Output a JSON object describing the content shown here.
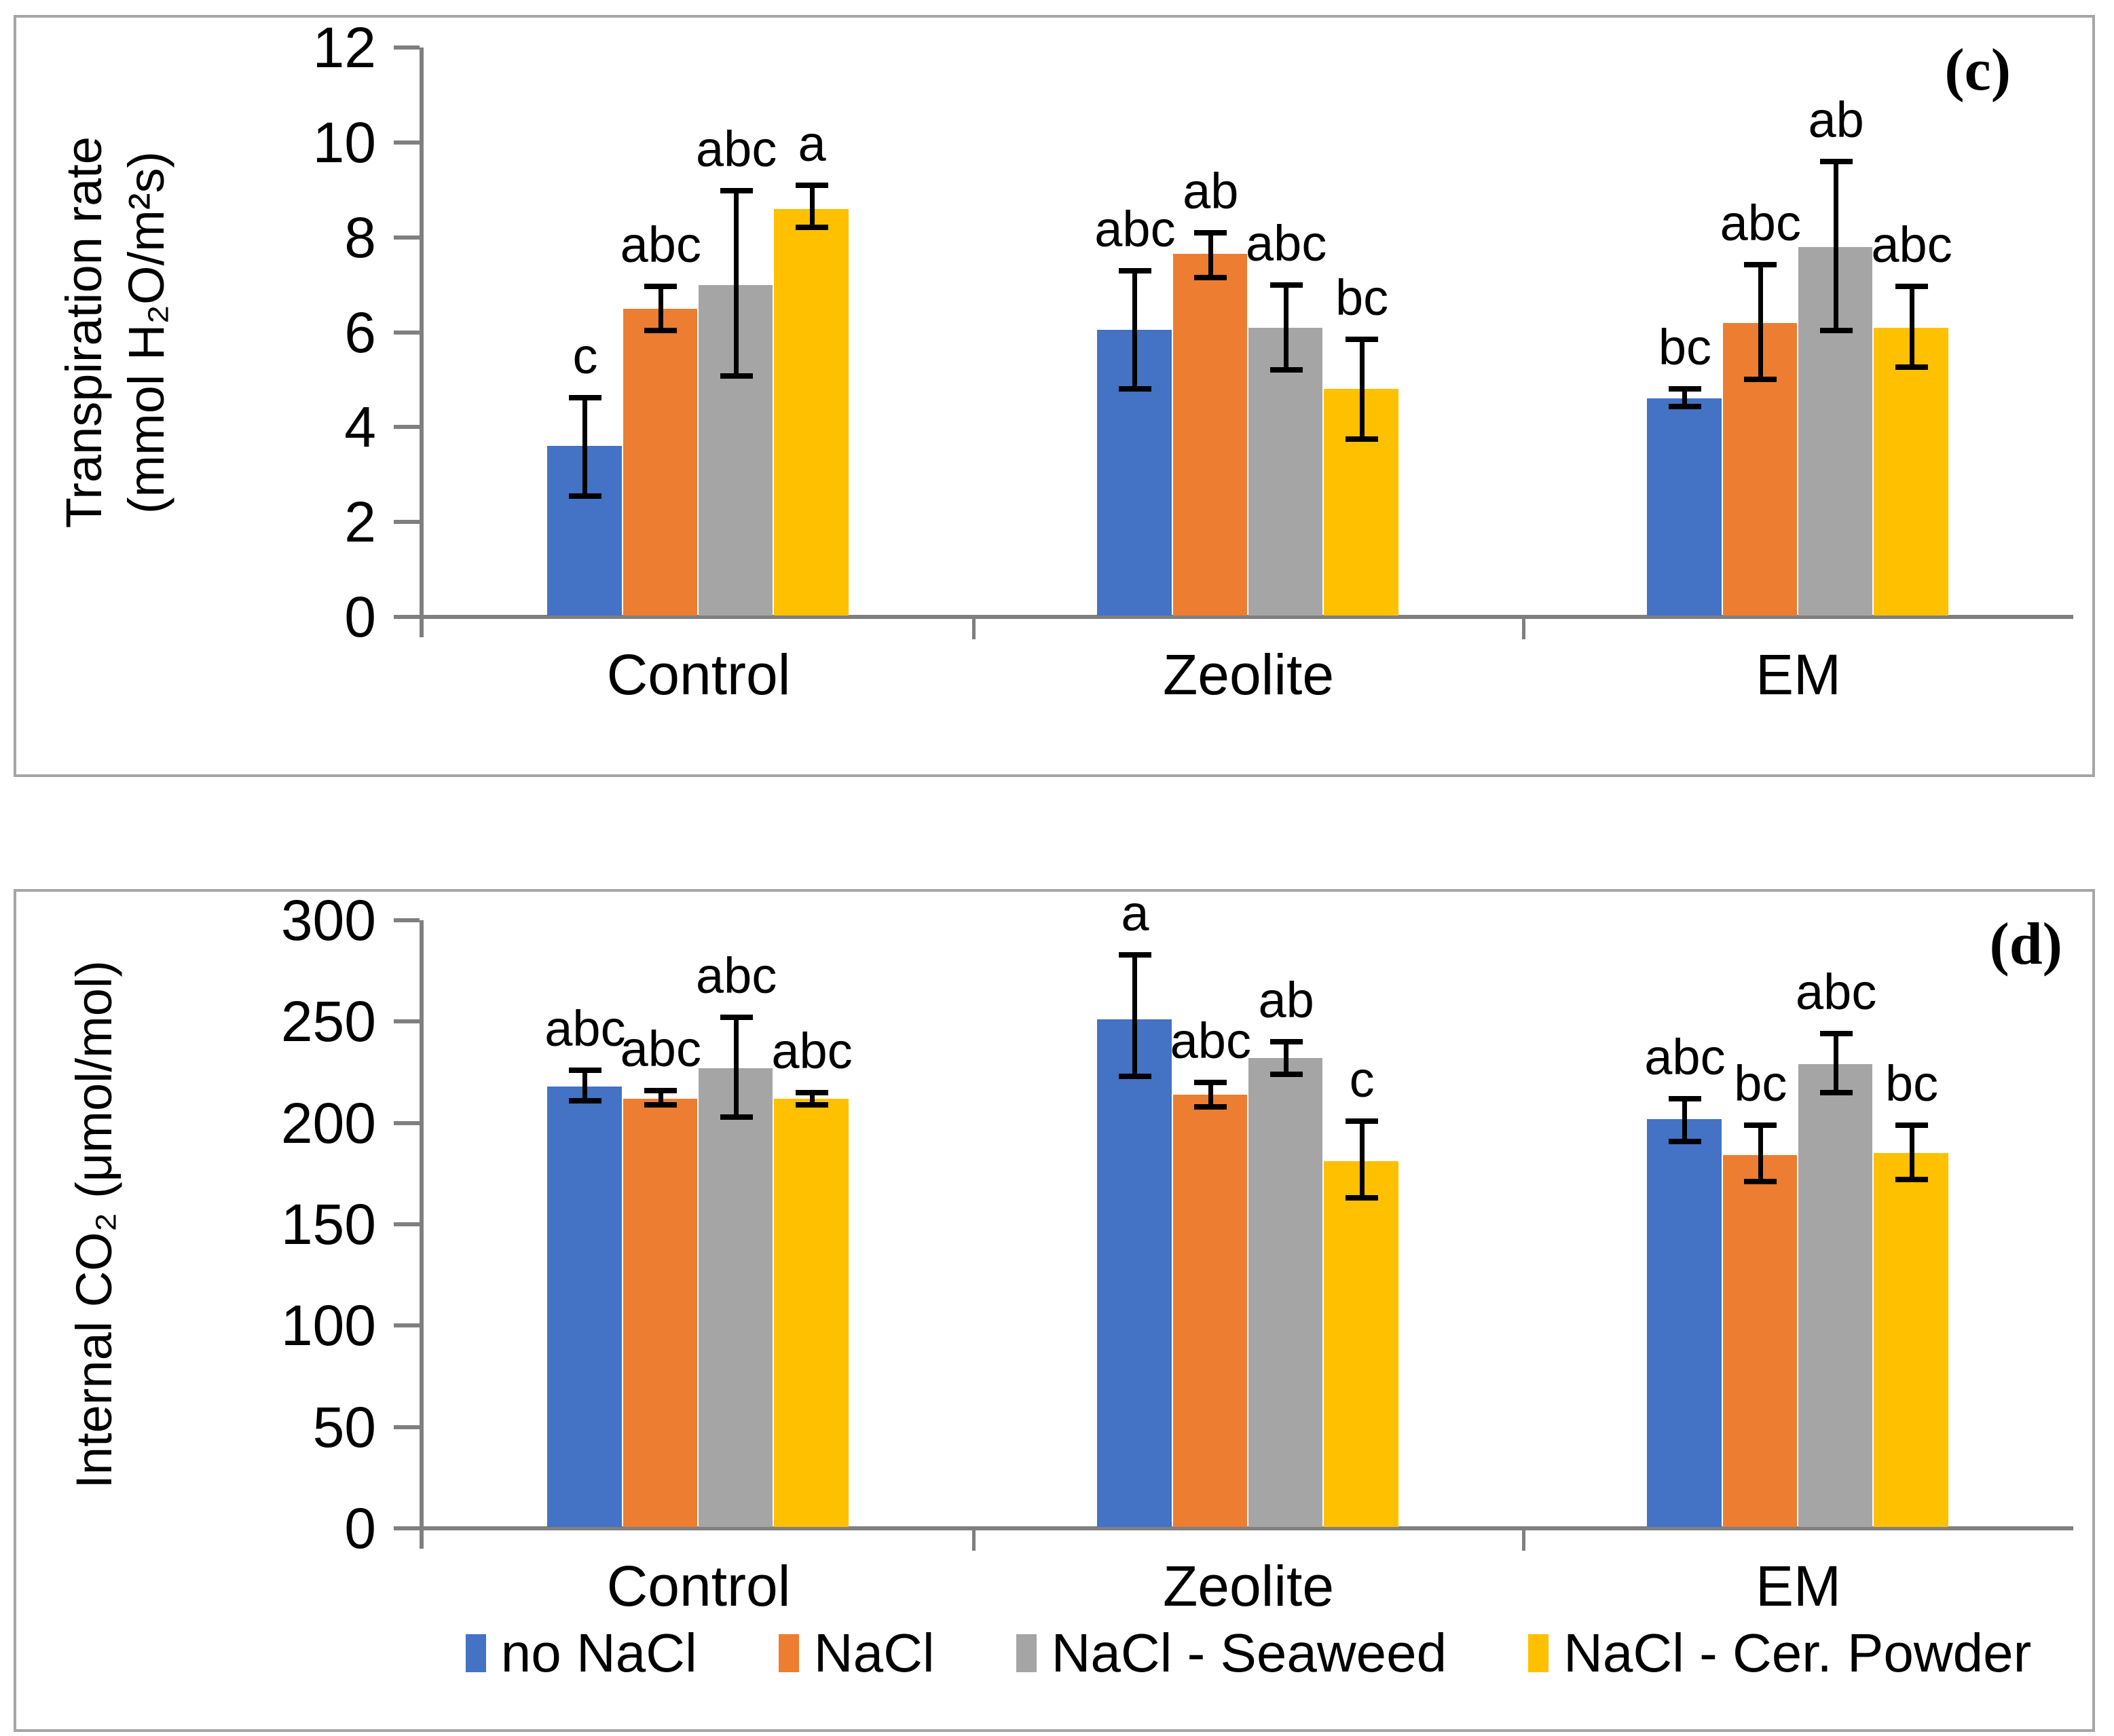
{
  "figure": {
    "background": "#ffffff",
    "border_color": "#a6a6a6",
    "axis_color": "#7f7f7f",
    "text_color": "#000000"
  },
  "categories": [
    "Control",
    "Zeolite",
    "EM"
  ],
  "legend": {
    "position": "bottom-center",
    "entries": [
      "no NaCl",
      "NaCl",
      "NaCl - Seaweed",
      "NaCl - Cer. Powder"
    ]
  },
  "series_colors": {
    "no NaCl": "#4472C4",
    "NaCl": "#ED7D31",
    "NaCl - Seaweed": "#A5A5A5",
    "NaCl - Cer. Powder": "#FFC000"
  },
  "chart_data": [
    {
      "type": "bar",
      "panel_label": "(c)",
      "title": "",
      "xlabel": "",
      "ylabel": "Transpiration rate (mmol H₂O/m²s)",
      "ylabel_lines": [
        "Transpiration rate",
        "(mmol H₂O/m²s)"
      ],
      "categories": [
        "Control",
        "Zeolite",
        "EM"
      ],
      "ylim": [
        0,
        12
      ],
      "yticks": [
        0,
        2,
        4,
        6,
        8,
        10,
        12
      ],
      "grid": false,
      "legend_shown": false,
      "error_bars": true,
      "series": [
        {
          "name": "no NaCl",
          "color": "#4472C4",
          "values": [
            3.6,
            6.05,
            4.6
          ],
          "err_low": [
            2.55,
            4.8,
            4.43
          ],
          "err_high": [
            4.62,
            7.3,
            4.81
          ],
          "letters": [
            "c",
            "abc",
            "bc"
          ]
        },
        {
          "name": "NaCl",
          "color": "#ED7D31",
          "values": [
            6.5,
            7.65,
            6.2
          ],
          "err_low": [
            6.03,
            7.15,
            5.0
          ],
          "err_high": [
            6.96,
            8.1,
            7.43
          ],
          "letters": [
            "abc",
            "ab",
            "abc"
          ]
        },
        {
          "name": "NaCl - Seaweed",
          "color": "#A5A5A5",
          "values": [
            7.0,
            6.1,
            7.8
          ],
          "err_low": [
            5.08,
            5.2,
            6.03
          ],
          "err_high": [
            8.98,
            7.0,
            9.6
          ],
          "letters": [
            "abc",
            "abc",
            "ab"
          ]
        },
        {
          "name": "NaCl - Cer. Powder",
          "color": "#FFC000",
          "values": [
            8.6,
            4.8,
            6.1
          ],
          "err_low": [
            8.21,
            3.75,
            5.27
          ],
          "err_high": [
            9.09,
            5.85,
            6.96
          ],
          "letters": [
            "a",
            "bc",
            "abc"
          ]
        }
      ]
    },
    {
      "type": "bar",
      "panel_label": "(d)",
      "title": "",
      "xlabel": "",
      "ylabel": "Internal CO₂ (μmol/mol)",
      "ylabel_lines": [
        "Internal CO₂ (μmol/mol)"
      ],
      "categories": [
        "Control",
        "Zeolite",
        "EM"
      ],
      "ylim": [
        0,
        300
      ],
      "yticks": [
        0,
        50,
        100,
        150,
        200,
        250,
        300
      ],
      "grid": false,
      "legend_shown": true,
      "error_bars": true,
      "series": [
        {
          "name": "no NaCl",
          "color": "#4472C4",
          "values": [
            218,
            251,
            202
          ],
          "err_low": [
            211,
            223,
            191
          ],
          "err_high": [
            226,
            283,
            212
          ],
          "letters": [
            "abc",
            "a",
            "abc"
          ]
        },
        {
          "name": "NaCl",
          "color": "#ED7D31",
          "values": [
            212,
            214,
            184
          ],
          "err_low": [
            209,
            208,
            171
          ],
          "err_high": [
            216,
            220,
            199
          ],
          "letters": [
            "abc",
            "abc",
            "bc"
          ]
        },
        {
          "name": "NaCl - Seaweed",
          "color": "#A5A5A5",
          "values": [
            227,
            232,
            229
          ],
          "err_low": [
            203,
            224,
            215
          ],
          "err_high": [
            252,
            240,
            244
          ],
          "letters": [
            "abc",
            "ab",
            "abc"
          ]
        },
        {
          "name": "NaCl - Cer. Powder",
          "color": "#FFC000",
          "values": [
            212,
            181,
            185
          ],
          "err_low": [
            209,
            163,
            172
          ],
          "err_high": [
            215,
            201,
            199
          ],
          "letters": [
            "abc",
            "c",
            "bc"
          ]
        }
      ]
    }
  ]
}
